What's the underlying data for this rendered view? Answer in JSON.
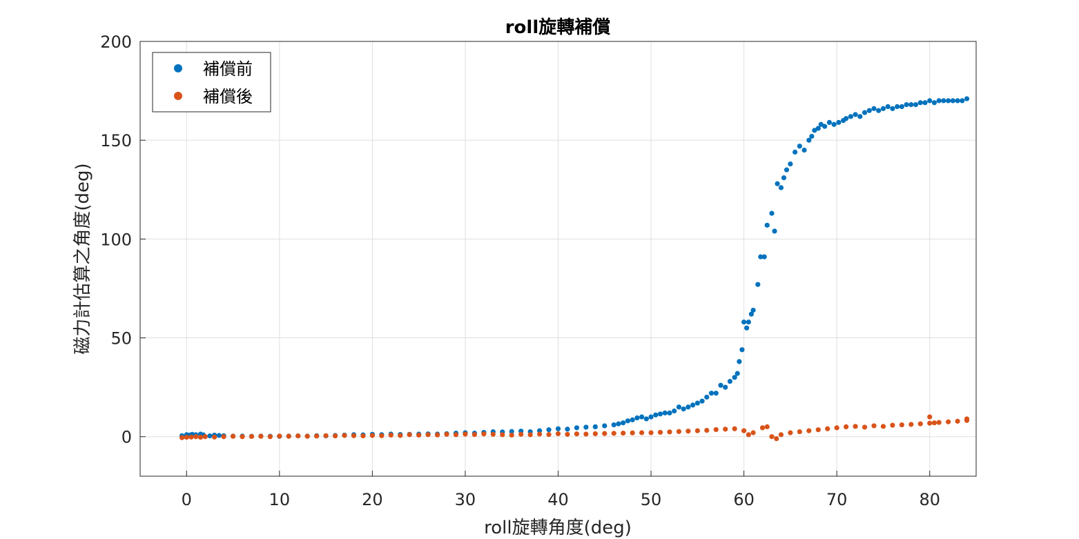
{
  "chart_data": {
    "type": "scatter",
    "title": "roll旋轉補償",
    "xlabel": "roll旋轉角度(deg)",
    "ylabel": "磁力計估算之角度(deg)",
    "xlim": [
      -5,
      85
    ],
    "ylim": [
      -20,
      200
    ],
    "xticks": [
      0,
      10,
      20,
      30,
      40,
      50,
      60,
      70,
      80
    ],
    "yticks": [
      0,
      50,
      100,
      150,
      200
    ],
    "grid": true,
    "legend": {
      "position": "top-left"
    },
    "series": [
      {
        "name": "補償前",
        "color": "#0072BD",
        "points": [
          [
            -0.5,
            0.5
          ],
          [
            0,
            1
          ],
          [
            0.3,
            0.8
          ],
          [
            0.6,
            1.2
          ],
          [
            1,
            1
          ],
          [
            1.5,
            1.3
          ],
          [
            1.8,
            0.9
          ],
          [
            2.5,
            0.4
          ],
          [
            3,
            0.8
          ],
          [
            3.5,
            0.6
          ],
          [
            4,
            0.5
          ],
          [
            5,
            0.3
          ],
          [
            6,
            0.3
          ],
          [
            7,
            0.2
          ],
          [
            8,
            0.3
          ],
          [
            9,
            0.2
          ],
          [
            10,
            0.2
          ],
          [
            11,
            0.3
          ],
          [
            12,
            0.4
          ],
          [
            13,
            0.3
          ],
          [
            14,
            0.5
          ],
          [
            15,
            0.4
          ],
          [
            16,
            0.6
          ],
          [
            17,
            0.8
          ],
          [
            18,
            1
          ],
          [
            19,
            0.9
          ],
          [
            20,
            1.2
          ],
          [
            21,
            1
          ],
          [
            22,
            1.3
          ],
          [
            23,
            1.1
          ],
          [
            24,
            1.2
          ],
          [
            25,
            1.3
          ],
          [
            26,
            1.4
          ],
          [
            27,
            1.3
          ],
          [
            28,
            1.5
          ],
          [
            29,
            1.8
          ],
          [
            30,
            2
          ],
          [
            31,
            1.8
          ],
          [
            32,
            2.2
          ],
          [
            33,
            2.5
          ],
          [
            34,
            2.4
          ],
          [
            35,
            2.6
          ],
          [
            36,
            2.8
          ],
          [
            37,
            2.5
          ],
          [
            38,
            3
          ],
          [
            39,
            3.5
          ],
          [
            40,
            4
          ],
          [
            41,
            3.8
          ],
          [
            42,
            4.5
          ],
          [
            43,
            4.8
          ],
          [
            44,
            5
          ],
          [
            45,
            5.5
          ],
          [
            46,
            6
          ],
          [
            46.5,
            6.5
          ],
          [
            47,
            7
          ],
          [
            47.5,
            8
          ],
          [
            48,
            8.5
          ],
          [
            48.5,
            9.5
          ],
          [
            49,
            10
          ],
          [
            49.5,
            9
          ],
          [
            50,
            10
          ],
          [
            50.5,
            11
          ],
          [
            51,
            11.5
          ],
          [
            51.5,
            12
          ],
          [
            52,
            12
          ],
          [
            52.5,
            13
          ],
          [
            53,
            15
          ],
          [
            53.5,
            14
          ],
          [
            54,
            15
          ],
          [
            54.5,
            16
          ],
          [
            55,
            17
          ],
          [
            55.5,
            18
          ],
          [
            56,
            20
          ],
          [
            56.5,
            22
          ],
          [
            57,
            22
          ],
          [
            57.5,
            26
          ],
          [
            58,
            25
          ],
          [
            58.5,
            28
          ],
          [
            59,
            30
          ],
          [
            59.3,
            32
          ],
          [
            59.5,
            38
          ],
          [
            59.8,
            44
          ],
          [
            60,
            58
          ],
          [
            60.3,
            55
          ],
          [
            60.5,
            58
          ],
          [
            60.8,
            62
          ],
          [
            61,
            64
          ],
          [
            61.5,
            77
          ],
          [
            61.8,
            91
          ],
          [
            62.2,
            91
          ],
          [
            62.5,
            107
          ],
          [
            63,
            113
          ],
          [
            63.3,
            104
          ],
          [
            63.6,
            128
          ],
          [
            64,
            126
          ],
          [
            64.3,
            131
          ],
          [
            64.6,
            135
          ],
          [
            65,
            138
          ],
          [
            65.5,
            144
          ],
          [
            66,
            147
          ],
          [
            66.5,
            145
          ],
          [
            67,
            150
          ],
          [
            67.3,
            152
          ],
          [
            67.6,
            155
          ],
          [
            68,
            156
          ],
          [
            68.3,
            158
          ],
          [
            68.7,
            157
          ],
          [
            69.2,
            159
          ],
          [
            69.7,
            158
          ],
          [
            70.2,
            159
          ],
          [
            70.7,
            160
          ],
          [
            71,
            161
          ],
          [
            71.5,
            162
          ],
          [
            72,
            163
          ],
          [
            72.5,
            162
          ],
          [
            73,
            164
          ],
          [
            73.5,
            165
          ],
          [
            74,
            166
          ],
          [
            74.5,
            165
          ],
          [
            75,
            166
          ],
          [
            75.5,
            167
          ],
          [
            76,
            166
          ],
          [
            76.5,
            167
          ],
          [
            77,
            167
          ],
          [
            77.5,
            168
          ],
          [
            78,
            168
          ],
          [
            78.5,
            168
          ],
          [
            79,
            169
          ],
          [
            79.5,
            169
          ],
          [
            80,
            170
          ],
          [
            80.5,
            169
          ],
          [
            81,
            170
          ],
          [
            81.5,
            170
          ],
          [
            82,
            170
          ],
          [
            82.5,
            170
          ],
          [
            83,
            170
          ],
          [
            83.5,
            170
          ],
          [
            84,
            171
          ]
        ]
      },
      {
        "name": "補償後",
        "color": "#D95319",
        "points": [
          [
            -0.5,
            -0.5
          ],
          [
            0,
            -0.3
          ],
          [
            0.5,
            -0.2
          ],
          [
            1,
            0
          ],
          [
            1.5,
            -0.3
          ],
          [
            2,
            0
          ],
          [
            3,
            -0.2
          ],
          [
            4,
            0
          ],
          [
            5,
            0.2
          ],
          [
            6,
            0
          ],
          [
            7,
            0.1
          ],
          [
            8,
            0.2
          ],
          [
            9,
            0
          ],
          [
            10,
            0.3
          ],
          [
            11,
            0.2
          ],
          [
            12,
            0.4
          ],
          [
            13,
            0.2
          ],
          [
            14,
            0.3
          ],
          [
            15,
            0.5
          ],
          [
            16,
            0.4
          ],
          [
            17,
            0.6
          ],
          [
            18,
            0.5
          ],
          [
            19,
            0.4
          ],
          [
            20,
            0.6
          ],
          [
            21,
            0.5
          ],
          [
            22,
            0.8
          ],
          [
            23,
            0.6
          ],
          [
            24,
            1
          ],
          [
            25,
            0.8
          ],
          [
            26,
            1
          ],
          [
            27,
            0.9
          ],
          [
            28,
            1.2
          ],
          [
            29,
            1
          ],
          [
            30,
            1.3
          ],
          [
            31,
            1.1
          ],
          [
            32,
            1.4
          ],
          [
            33,
            1.2
          ],
          [
            34,
            1
          ],
          [
            35,
            0.8
          ],
          [
            36,
            1.2
          ],
          [
            37,
            1
          ],
          [
            38,
            1.3
          ],
          [
            39,
            1.1
          ],
          [
            40,
            1.5
          ],
          [
            41,
            1.2
          ],
          [
            42,
            1.4
          ],
          [
            43,
            1.3
          ],
          [
            44,
            1.5
          ],
          [
            45,
            1.6
          ],
          [
            46,
            1.7
          ],
          [
            47,
            1.8
          ],
          [
            48,
            1.9
          ],
          [
            49,
            2
          ],
          [
            50,
            2
          ],
          [
            51,
            2.2
          ],
          [
            52,
            2.4
          ],
          [
            53,
            2.6
          ],
          [
            54,
            2.8
          ],
          [
            55,
            3
          ],
          [
            56,
            3.2
          ],
          [
            57,
            3.6
          ],
          [
            58,
            3.8
          ],
          [
            59,
            4
          ],
          [
            60,
            3
          ],
          [
            60.5,
            1
          ],
          [
            61,
            2
          ],
          [
            62,
            4.5
          ],
          [
            62.5,
            5
          ],
          [
            63,
            0
          ],
          [
            63.5,
            -1
          ],
          [
            64,
            1
          ],
          [
            65,
            2
          ],
          [
            66,
            2.5
          ],
          [
            67,
            3
          ],
          [
            68,
            3.5
          ],
          [
            69,
            4
          ],
          [
            70,
            4.5
          ],
          [
            71,
            5
          ],
          [
            72,
            5.2
          ],
          [
            73,
            4.8
          ],
          [
            74,
            5.5
          ],
          [
            75,
            5.2
          ],
          [
            76,
            5.8
          ],
          [
            77,
            6
          ],
          [
            78,
            6.2
          ],
          [
            79,
            6.5
          ],
          [
            80,
            6.8
          ],
          [
            80.5,
            7
          ],
          [
            81,
            7.2
          ],
          [
            82,
            7.5
          ],
          [
            83,
            7.8
          ],
          [
            84,
            8.2
          ],
          [
            80,
            10
          ],
          [
            84,
            9
          ]
        ]
      }
    ]
  }
}
